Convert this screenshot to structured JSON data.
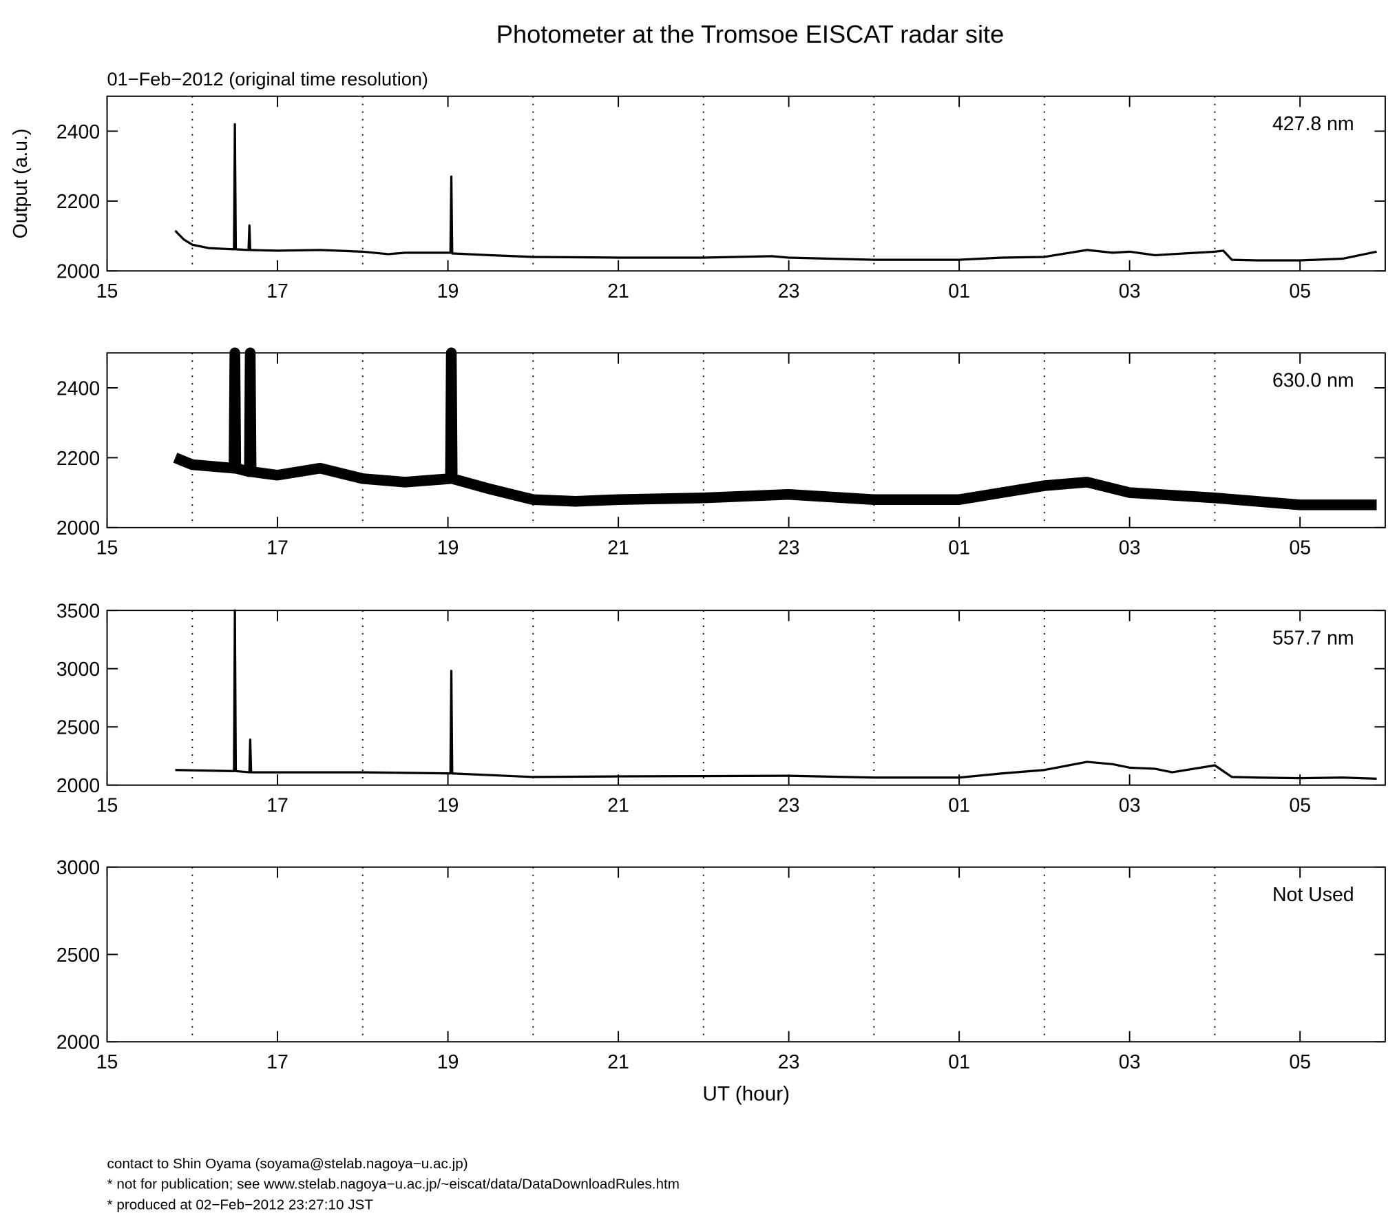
{
  "title": "Photometer at the Tromsoe EISCAT radar site",
  "subtitle": "01−Feb−2012 (original time resolution)",
  "chart_data": [
    {
      "type": "line",
      "label": "427.8 nm",
      "ylabel": "Output (a.u.)",
      "xlim": [
        15,
        30
      ],
      "xticks": [
        15,
        17,
        19,
        21,
        23,
        {
          "value": 25,
          "label": "01"
        },
        {
          "value": 27,
          "label": "03"
        },
        {
          "value": 29,
          "label": "05"
        }
      ],
      "xminor": [
        16,
        18,
        20,
        22,
        24,
        26,
        28
      ],
      "ylim": [
        2000,
        2500
      ],
      "yticks": [
        2000,
        2200,
        2400
      ],
      "line_width": 2.5,
      "series": [
        {
          "color": "#000000",
          "x": [
            15.8,
            15.9,
            16.0,
            16.2,
            16.49,
            16.5,
            16.51,
            16.66,
            16.67,
            16.68,
            17,
            17.5,
            18,
            18.3,
            18.5,
            19.03,
            19.04,
            19.05,
            19.5,
            20,
            21,
            22,
            22.8,
            23,
            24,
            25,
            25.5,
            26,
            26.5,
            26.8,
            27,
            27.3,
            27.5,
            28,
            28.1,
            28.2,
            28.5,
            29,
            29.5,
            29.9
          ],
          "values": [
            2115,
            2090,
            2075,
            2065,
            2062,
            2420,
            2062,
            2060,
            2130,
            2060,
            2058,
            2060,
            2055,
            2048,
            2052,
            2052,
            2270,
            2050,
            2045,
            2040,
            2038,
            2038,
            2042,
            2038,
            2032,
            2032,
            2038,
            2040,
            2060,
            2052,
            2055,
            2045,
            2048,
            2055,
            2058,
            2032,
            2030,
            2030,
            2035,
            2055
          ]
        }
      ]
    },
    {
      "type": "line",
      "label": "630.0 nm",
      "xlim": [
        15,
        30
      ],
      "xticks": [
        15,
        17,
        19,
        21,
        23,
        {
          "value": 25,
          "label": "01"
        },
        {
          "value": 27,
          "label": "03"
        },
        {
          "value": 29,
          "label": "05"
        }
      ],
      "xminor": [
        16,
        18,
        20,
        22,
        24,
        26,
        28
      ],
      "ylim": [
        2000,
        2500
      ],
      "yticks": [
        2000,
        2200,
        2400
      ],
      "line_width": 12,
      "series": [
        {
          "color": "#000000",
          "x": [
            15.8,
            16.0,
            16.49,
            16.5,
            16.51,
            16.67,
            16.68,
            16.69,
            17,
            17.5,
            18,
            18.5,
            19.03,
            19.04,
            19.05,
            19.5,
            20,
            20.5,
            21,
            22,
            23,
            24,
            25,
            25.5,
            26,
            26.5,
            27,
            28,
            29,
            29.9
          ],
          "values": [
            2200,
            2180,
            2170,
            2500,
            2170,
            2160,
            2500,
            2160,
            2150,
            2170,
            2140,
            2130,
            2140,
            2500,
            2140,
            2110,
            2080,
            2075,
            2080,
            2085,
            2095,
            2080,
            2080,
            2100,
            2120,
            2130,
            2100,
            2085,
            2065,
            2065
          ]
        }
      ]
    },
    {
      "type": "line",
      "label": "557.7 nm",
      "xlim": [
        15,
        30
      ],
      "xticks": [
        15,
        17,
        19,
        21,
        23,
        {
          "value": 25,
          "label": "01"
        },
        {
          "value": 27,
          "label": "03"
        },
        {
          "value": 29,
          "label": "05"
        }
      ],
      "xminor": [
        16,
        18,
        20,
        22,
        24,
        26,
        28
      ],
      "ylim": [
        2000,
        3500
      ],
      "yticks": [
        2000,
        2500,
        3000,
        3500
      ],
      "line_width": 2.5,
      "series": [
        {
          "color": "#000000",
          "x": [
            15.8,
            16.49,
            16.5,
            16.51,
            16.67,
            16.68,
            16.69,
            17,
            18,
            19.03,
            19.04,
            19.05,
            20,
            21,
            23,
            24,
            25,
            25.5,
            26,
            26.5,
            26.8,
            27,
            27.3,
            27.5,
            28,
            28.2,
            28.5,
            29,
            29.5,
            29.9
          ],
          "values": [
            2130,
            2120,
            3500,
            2120,
            2110,
            2390,
            2110,
            2110,
            2110,
            2100,
            2980,
            2100,
            2070,
            2075,
            2080,
            2065,
            2065,
            2100,
            2130,
            2200,
            2180,
            2150,
            2140,
            2110,
            2170,
            2070,
            2065,
            2060,
            2065,
            2055
          ]
        }
      ]
    },
    {
      "type": "line",
      "label": "Not Used",
      "xlabel": "UT (hour)",
      "xlim": [
        15,
        30
      ],
      "xticks": [
        15,
        17,
        19,
        21,
        23,
        {
          "value": 25,
          "label": "01"
        },
        {
          "value": 27,
          "label": "03"
        },
        {
          "value": 29,
          "label": "05"
        }
      ],
      "xminor": [
        16,
        18,
        20,
        22,
        24,
        26,
        28
      ],
      "ylim": [
        2000,
        3000
      ],
      "yticks": [
        2000,
        2500,
        3000
      ]
    }
  ],
  "footer": [
    "contact to Shin Oyama (soyama@stelab.nagoya−u.ac.jp)",
    "* not for publication; see www.stelab.nagoya−u.ac.jp/~eiscat/data/DataDownloadRules.htm",
    "* produced at 02−Feb−2012 23:27:10 JST"
  ]
}
